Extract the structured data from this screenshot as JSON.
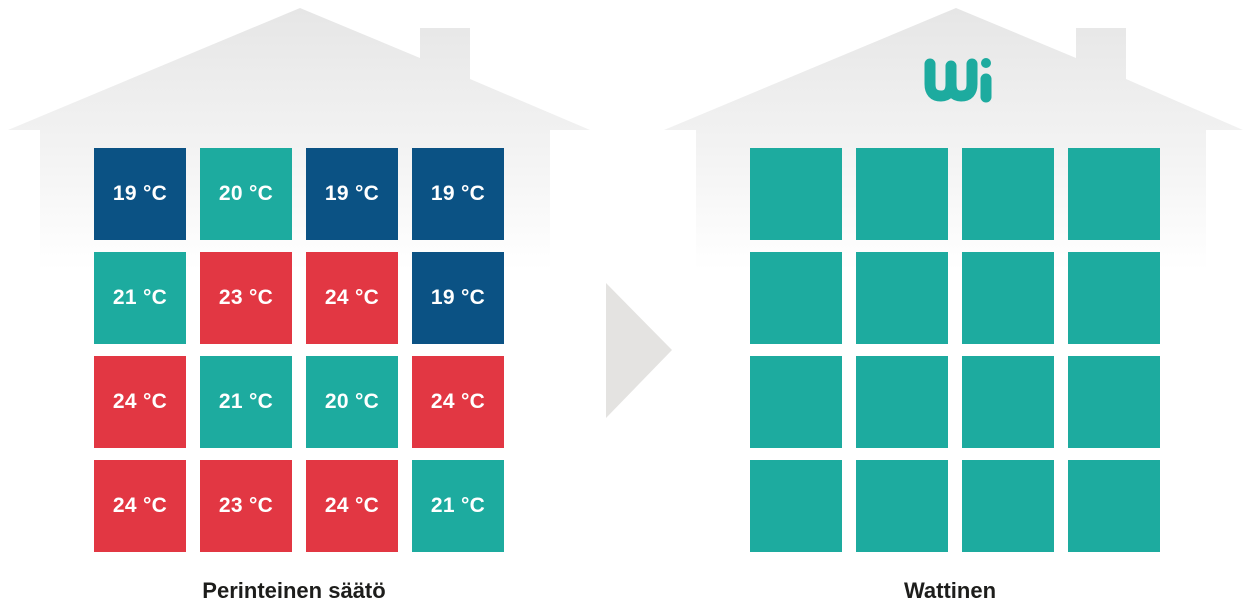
{
  "colors": {
    "cold": "#0b5284",
    "ok": "#1dab9f",
    "hot": "#e23743",
    "house": "#e8e8e8",
    "arrow": "#e4e3e1",
    "logo": "#1dab9f"
  },
  "left_house": {
    "caption": "Perinteinen säätö",
    "rooms": [
      {
        "label": "19 °C",
        "status": "cold"
      },
      {
        "label": "20 °C",
        "status": "ok"
      },
      {
        "label": "19 °C",
        "status": "cold"
      },
      {
        "label": "19 °C",
        "status": "cold"
      },
      {
        "label": "21 °C",
        "status": "ok"
      },
      {
        "label": "23 °C",
        "status": "hot"
      },
      {
        "label": "24 °C",
        "status": "hot"
      },
      {
        "label": "19 °C",
        "status": "cold"
      },
      {
        "label": "24 °C",
        "status": "hot"
      },
      {
        "label": "21 °C",
        "status": "ok"
      },
      {
        "label": "20 °C",
        "status": "ok"
      },
      {
        "label": "24 °C",
        "status": "hot"
      },
      {
        "label": "24 °C",
        "status": "hot"
      },
      {
        "label": "23 °C",
        "status": "hot"
      },
      {
        "label": "24 °C",
        "status": "hot"
      },
      {
        "label": "21 °C",
        "status": "ok"
      }
    ]
  },
  "right_house": {
    "caption": "Wattinen",
    "logo_icon": "wattinen-logo-icon",
    "room_count": 16,
    "room_status": "ok"
  },
  "arrow_icon": "triangle-right-icon"
}
